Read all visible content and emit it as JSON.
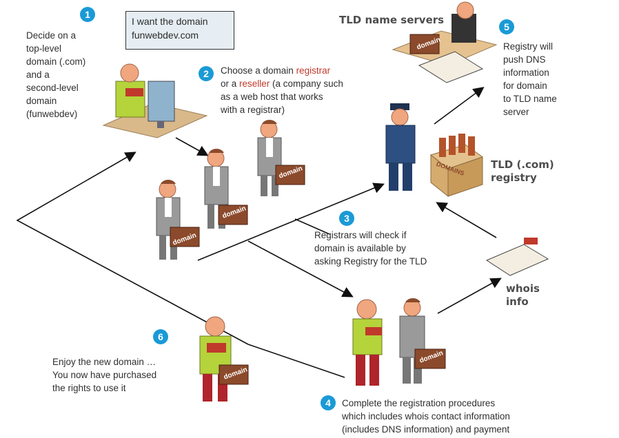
{
  "bubble": {
    "line1": "I want the domain",
    "line2": "funwebdev.com"
  },
  "steps": [
    {
      "num": "1",
      "lines": [
        "Decide on a",
        "top-level",
        "domain (.com)",
        "and a",
        "second-level",
        "domain",
        "(funwebdev)"
      ]
    },
    {
      "num": "2",
      "line1_a": "Choose a domain ",
      "line1_b": "registrar",
      "line2_a": "or a ",
      "line2_b": "reseller",
      "line2_c": " (a company such",
      "line3": "as a web host that works",
      "line4": "with a registrar)"
    },
    {
      "num": "3",
      "lines": [
        "Registrars will check if",
        "domain is available by",
        "asking Registry for the TLD"
      ]
    },
    {
      "num": "4",
      "lines": [
        "Complete the registration procedures",
        "which includes whois contact information",
        "(includes DNS information) and payment"
      ]
    },
    {
      "num": "5",
      "lines": [
        "Registry will",
        "push DNS",
        "information",
        "for domain",
        "to TLD name",
        "server"
      ]
    },
    {
      "num": "6",
      "lines": [
        "Enjoy the new domain …",
        "You now have purchased",
        "the rights to use it"
      ]
    }
  ],
  "labels": {
    "tld_name_servers": "TLD name servers",
    "tld_registry_line1": "TLD (.com)",
    "tld_registry_line2": "registry",
    "whois_line1": "whois",
    "whois_line2": "info",
    "briefcase": "domain",
    "crate": "DOMAINS"
  },
  "colors": {
    "badge": "#1a9ad6",
    "accent_red": "#c0392b",
    "suit": "#8a8a8a",
    "shirt_green": "#b5d33b",
    "briefcase": "#8b4a2b",
    "police": "#2d4f82"
  }
}
